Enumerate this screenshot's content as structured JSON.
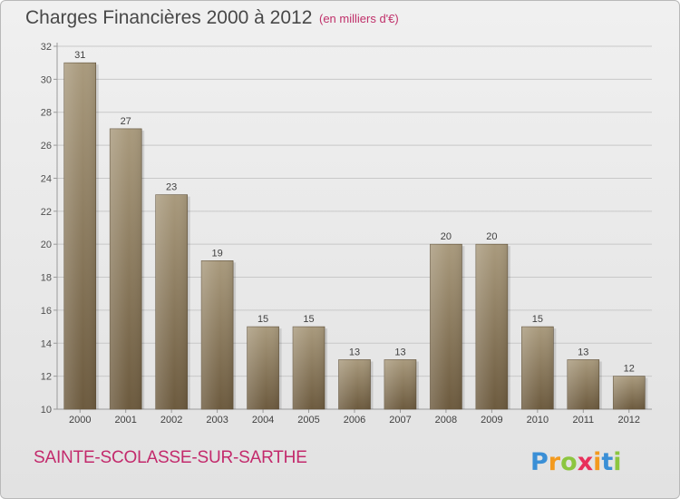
{
  "header": {
    "title": "Charges Financières 2000 à 2012",
    "unit_note": "(en milliers d'€)"
  },
  "footer": {
    "commune": "SAINTE-SCOLASSE-SUR-SARTHE",
    "logo_text": "Proxiti"
  },
  "colors": {
    "bar_top": "#a99a7d",
    "bar_bottom": "#6c5a3e",
    "commune": "#c32a6c",
    "unit_note": "#c0306a"
  },
  "chart_data": {
    "type": "bar",
    "title": "Charges Financières 2000 à 2012",
    "subtitle": "(en milliers d'€)",
    "categories": [
      "2000",
      "2001",
      "2002",
      "2003",
      "2004",
      "2005",
      "2006",
      "2007",
      "2008",
      "2009",
      "2010",
      "2011",
      "2012"
    ],
    "values": [
      31,
      27,
      23,
      19,
      15,
      15,
      13,
      13,
      20,
      20,
      15,
      13,
      12
    ],
    "ylim": [
      10,
      32
    ],
    "yticks": [
      10,
      12,
      14,
      16,
      18,
      20,
      22,
      24,
      26,
      28,
      30,
      32
    ],
    "grid": true,
    "data_labels": true
  }
}
